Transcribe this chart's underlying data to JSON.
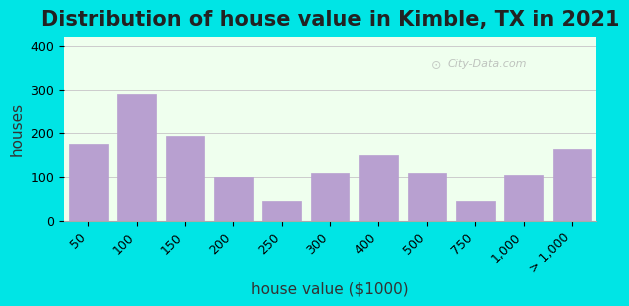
{
  "title": "Distribution of house value in Kimble, TX in 2021",
  "xlabel": "house value ($1000)",
  "ylabel": "houses",
  "categories": [
    "50",
    "100",
    "150",
    "200",
    "250",
    "300",
    "400",
    "500",
    "750",
    "1,000",
    "> 1,000"
  ],
  "values": [
    175,
    290,
    195,
    100,
    45,
    110,
    150,
    110,
    45,
    105,
    165
  ],
  "bar_color": "#b8a0d0",
  "bar_edge_color": "#b8a0d0",
  "ylim": [
    0,
    420
  ],
  "yticks": [
    0,
    100,
    200,
    300,
    400
  ],
  "background_outer": "#00e5e5",
  "background_inner": "#efffee",
  "grid_color": "#cccccc",
  "title_fontsize": 15,
  "axis_label_fontsize": 11,
  "tick_fontsize": 9,
  "watermark": "City-Data.com"
}
